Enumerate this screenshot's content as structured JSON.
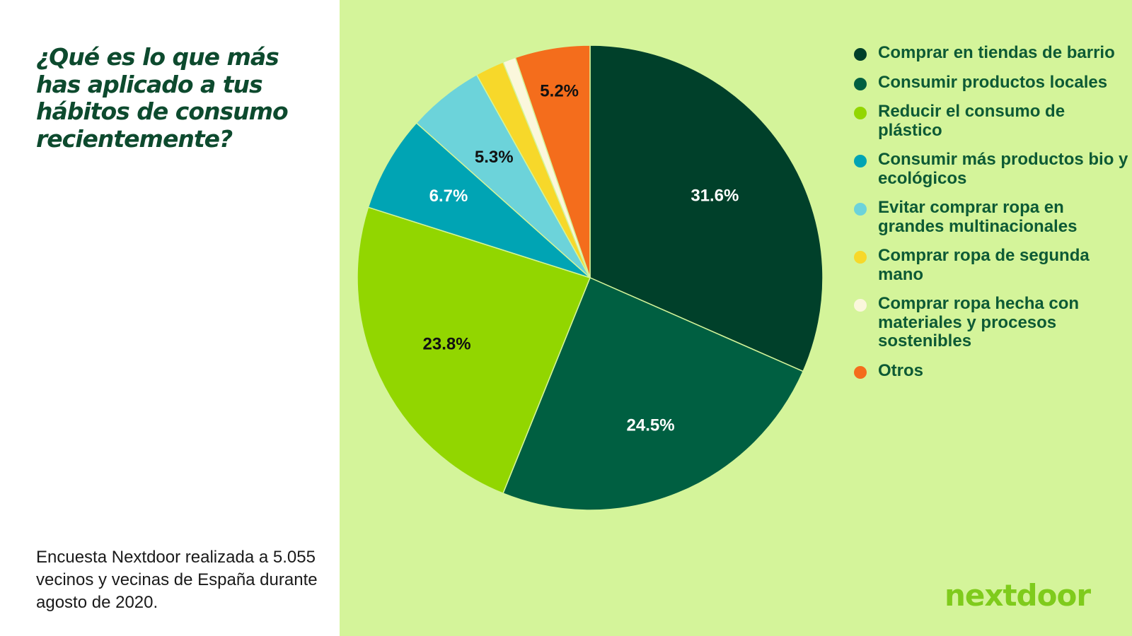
{
  "question": "¿Qué es lo que más has aplicado a tus hábitos de consumo recientemente?",
  "source_note": "Encuesta Nextdoor realizada a 5.055 vecinos y vecinas de España durante agosto de 2020.",
  "brand": {
    "name": "nextdoor",
    "color": "#7fcb1c"
  },
  "colors": {
    "panel_bg": "#d4f49a",
    "title": "#0d4a2e",
    "legend_text": "#0d5a35"
  },
  "chart_data": {
    "type": "pie",
    "title": "¿Qué es lo que más has aplicado a tus hábitos de consumo recientemente?",
    "legend_position": "right",
    "slices": [
      {
        "label": "Comprar en tiendas de barrio",
        "value": 31.6,
        "value_label": "31.6%",
        "color": "#00402a",
        "label_color": "#ffffff"
      },
      {
        "label": "Consumir productos locales",
        "value": 24.5,
        "value_label": "24.5%",
        "color": "#005f41",
        "label_color": "#ffffff"
      },
      {
        "label": "Reducir el consumo de plástico",
        "value": 23.8,
        "value_label": "23.8%",
        "color": "#92d600",
        "label_color": "#111111"
      },
      {
        "label": "Consumir más productos bio y ecológicos",
        "value": 6.7,
        "value_label": "6.7%",
        "color": "#00a4b4",
        "label_color": "#ffffff"
      },
      {
        "label": "Evitar comprar ropa en grandes multinacionales",
        "value": 5.3,
        "value_label": "5.3%",
        "color": "#6cd3da",
        "label_color": "#111111"
      },
      {
        "label": "Comprar ropa de segunda mano",
        "value": 2.0,
        "value_label": "",
        "color": "#f7d82a",
        "label_color": "#111111"
      },
      {
        "label": "Comprar ropa hecha con materiales y procesos sostenibles",
        "value": 0.9,
        "value_label": "",
        "color": "#fbf7dc",
        "label_color": "#111111"
      },
      {
        "label": "Otros",
        "value": 5.2,
        "value_label": "5.2%",
        "color": "#f46d1c",
        "label_color": "#111111"
      }
    ]
  }
}
